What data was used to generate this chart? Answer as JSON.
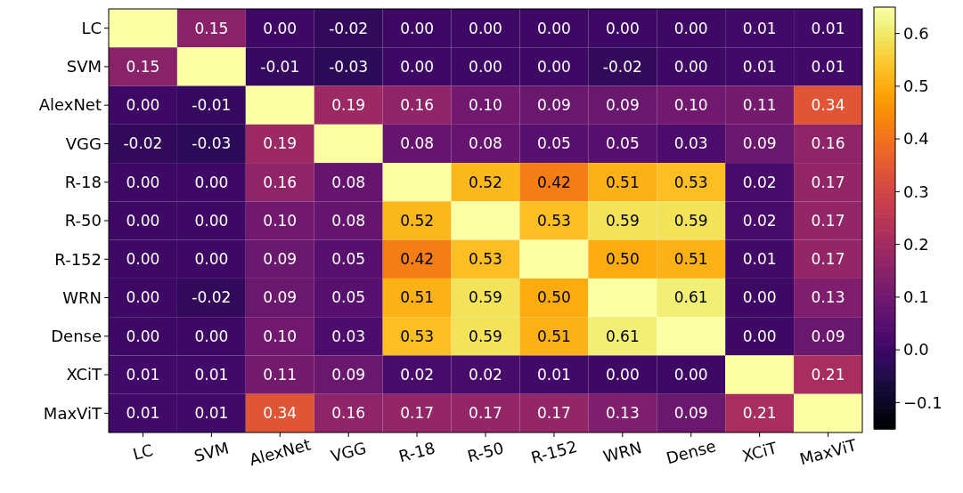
{
  "chart_data": {
    "type": "heatmap",
    "categories": [
      "LC",
      "SVM",
      "AlexNet",
      "VGG",
      "R-18",
      "R-50",
      "R-152",
      "WRN",
      "Dense",
      "XCiT",
      "MaxViT"
    ],
    "y_categories": [
      "LC",
      "SVM",
      "AlexNet",
      "VGG",
      "R-18",
      "R-50",
      "R-152",
      "WRN",
      "Dense",
      "XCiT",
      "MaxViT"
    ],
    "cells": [
      [
        0.65,
        0.15,
        0.0,
        -0.02,
        0.0,
        0.0,
        0.0,
        0.0,
        0.0,
        0.01,
        0.01
      ],
      [
        0.15,
        0.65,
        -0.01,
        -0.03,
        0.0,
        0.0,
        0.0,
        -0.02,
        0.0,
        0.01,
        0.01
      ],
      [
        0.0,
        -0.01,
        0.65,
        0.19,
        0.16,
        0.1,
        0.09,
        0.09,
        0.1,
        0.11,
        0.34
      ],
      [
        -0.02,
        -0.03,
        0.19,
        0.65,
        0.08,
        0.08,
        0.05,
        0.05,
        0.03,
        0.09,
        0.16
      ],
      [
        0.0,
        0.0,
        0.16,
        0.08,
        0.65,
        0.52,
        0.42,
        0.51,
        0.53,
        0.02,
        0.17
      ],
      [
        0.0,
        0.0,
        0.1,
        0.08,
        0.52,
        0.65,
        0.53,
        0.59,
        0.59,
        0.02,
        0.17
      ],
      [
        0.0,
        0.0,
        0.09,
        0.05,
        0.42,
        0.53,
        0.65,
        0.5,
        0.51,
        0.01,
        0.17
      ],
      [
        0.0,
        -0.02,
        0.09,
        0.05,
        0.51,
        0.59,
        0.5,
        0.65,
        0.61,
        0.0,
        0.13
      ],
      [
        0.0,
        0.0,
        0.1,
        0.03,
        0.53,
        0.59,
        0.51,
        0.61,
        0.65,
        0.0,
        0.09
      ],
      [
        0.01,
        0.01,
        0.11,
        0.09,
        0.02,
        0.02,
        0.01,
        0.0,
        0.0,
        0.65,
        0.21
      ],
      [
        0.01,
        0.01,
        0.34,
        0.16,
        0.17,
        0.17,
        0.17,
        0.13,
        0.09,
        0.21,
        0.65
      ]
    ],
    "cell_labels": [
      [
        null,
        "0.15",
        "0.00",
        "-0.02",
        "0.00",
        "0.00",
        "0.00",
        "0.00",
        "0.00",
        "0.01",
        "0.01"
      ],
      [
        "0.15",
        null,
        "-0.01",
        "-0.03",
        "0.00",
        "0.00",
        "0.00",
        "-0.02",
        "0.00",
        "0.01",
        "0.01"
      ],
      [
        "0.00",
        "-0.01",
        null,
        "0.19",
        "0.16",
        "0.10",
        "0.09",
        "0.09",
        "0.10",
        "0.11",
        "0.34"
      ],
      [
        "-0.02",
        "-0.03",
        "0.19",
        null,
        "0.08",
        "0.08",
        "0.05",
        "0.05",
        "0.03",
        "0.09",
        "0.16"
      ],
      [
        "0.00",
        "0.00",
        "0.16",
        "0.08",
        null,
        "0.52",
        "0.42",
        "0.51",
        "0.53",
        "0.02",
        "0.17"
      ],
      [
        "0.00",
        "0.00",
        "0.10",
        "0.08",
        "0.52",
        null,
        "0.53",
        "0.59",
        "0.59",
        "0.02",
        "0.17"
      ],
      [
        "0.00",
        "0.00",
        "0.09",
        "0.05",
        "0.42",
        "0.53",
        null,
        "0.50",
        "0.51",
        "0.01",
        "0.17"
      ],
      [
        "0.00",
        "-0.02",
        "0.09",
        "0.05",
        "0.51",
        "0.59",
        "0.50",
        null,
        "0.61",
        "0.00",
        "0.13"
      ],
      [
        "0.00",
        "0.00",
        "0.10",
        "0.03",
        "0.53",
        "0.59",
        "0.51",
        "0.61",
        null,
        "0.00",
        "0.09"
      ],
      [
        "0.01",
        "0.01",
        "0.11",
        "0.09",
        "0.02",
        "0.02",
        "0.01",
        "0.00",
        "0.00",
        null,
        "0.21"
      ],
      [
        "0.01",
        "0.01",
        "0.34",
        "0.16",
        "0.17",
        "0.17",
        "0.17",
        "0.13",
        "0.09",
        "0.21",
        null
      ]
    ],
    "clim": [
      -0.15,
      0.65
    ],
    "cticks": [
      {
        "value": -0.1,
        "label": "−0.1"
      },
      {
        "value": 0.0,
        "label": "0.0"
      },
      {
        "value": 0.1,
        "label": "0.1"
      },
      {
        "value": 0.2,
        "label": "0.2"
      },
      {
        "value": 0.3,
        "label": "0.3"
      },
      {
        "value": 0.4,
        "label": "0.4"
      },
      {
        "value": 0.5,
        "label": "0.5"
      },
      {
        "value": 0.6,
        "label": "0.6"
      }
    ]
  }
}
